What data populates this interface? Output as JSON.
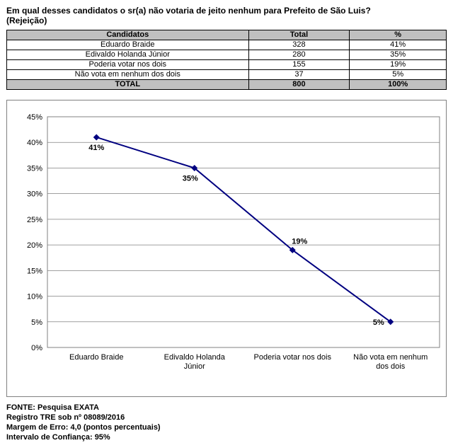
{
  "colors": {
    "navy": "#000080",
    "table_header_bg": "#C0C0C0"
  },
  "title": {
    "question": "Em qual desses candidatos o sr(a) não votaria de jeito nenhum para Prefeito de São Luis?",
    "qualifier": "(Rejeição)"
  },
  "table": {
    "headers": [
      "Candidatos",
      "Total",
      "%"
    ],
    "rows": [
      [
        "Eduardo Braide",
        "328",
        "41%"
      ],
      [
        "Edivaldo Holanda Júnior",
        "280",
        "35%"
      ],
      [
        "Poderia votar nos dois",
        "155",
        "19%"
      ],
      [
        "Não vota em nenhum dos dois",
        "37",
        "5%"
      ]
    ],
    "total_row": [
      "TOTAL",
      "800",
      "100%"
    ]
  },
  "chart_data": {
    "type": "line",
    "title": "",
    "xlabel": "",
    "ylabel": "",
    "categories": [
      "Eduardo Braide",
      "Edivaldo Holanda\nJúnior",
      "Poderia votar nos dois",
      "Não vota em nenhum\ndos dois"
    ],
    "values": [
      41,
      35,
      19,
      5
    ],
    "point_labels": [
      "41%",
      "35%",
      "19%",
      "5%"
    ],
    "ylim": [
      0,
      45
    ],
    "ytick_step": 5,
    "yticks": [
      "0%",
      "5%",
      "10%",
      "15%",
      "20%",
      "25%",
      "30%",
      "35%",
      "40%",
      "45%"
    ],
    "line_color": "#000080",
    "marker": "diamond",
    "grid": true,
    "legend": "none"
  },
  "footer": {
    "lines": [
      "FONTE: Pesquisa EXATA",
      "Registro TRE sob nº 08089/2016",
      "Margem de Erro: 4,0 (pontos percentuais)",
      "Intervalo de Confiança: 95%"
    ]
  }
}
